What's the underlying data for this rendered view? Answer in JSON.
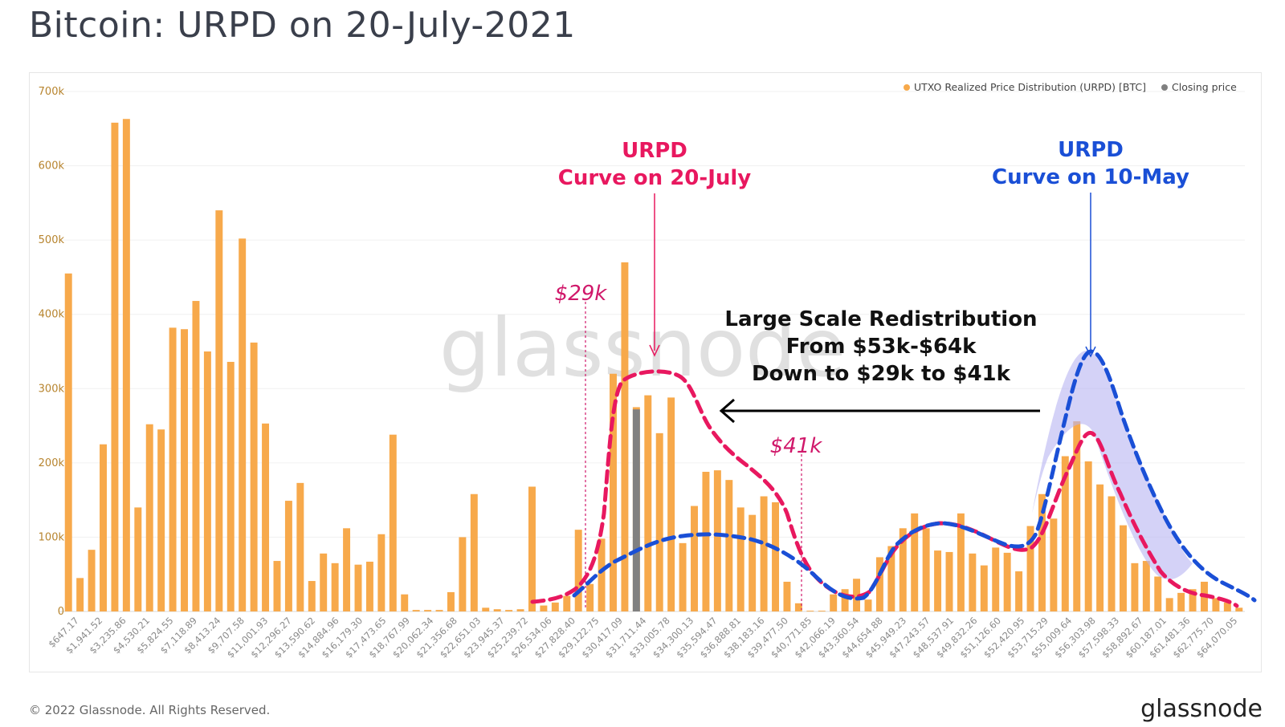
{
  "page": {
    "title": "Bitcoin: URPD on 20-July-2021",
    "copyright": "© 2022 Glassnode. All Rights Reserved.",
    "logo": "glassnode",
    "watermark": "glassnode"
  },
  "chart_data": {
    "type": "bar",
    "ylim": [
      0,
      700000
    ],
    "y_ticks": [
      0,
      100000,
      200000,
      300000,
      400000,
      500000,
      600000,
      700000
    ],
    "y_tick_labels": [
      "0",
      "100k",
      "200k",
      "300k",
      "400k",
      "500k",
      "600k",
      "700k"
    ],
    "grid": true,
    "legend": {
      "placement": "top-right",
      "items": [
        {
          "label": "UTXO Realized Price Distribution (URPD) [BTC]",
          "color": "#f7a94b"
        },
        {
          "label": "Closing price",
          "color": "#808080"
        }
      ]
    },
    "x_tick_labels": [
      "$647.17",
      "$1,941.52",
      "$3,235.86",
      "$4,530.21",
      "$5,824.55",
      "$7,118.89",
      "$8,413.24",
      "$9,707.58",
      "$11,001.93",
      "$12,296.27",
      "$13,590.62",
      "$14,884.96",
      "$16,179.30",
      "$17,473.65",
      "$18,767.99",
      "$20,062.34",
      "$21,356.68",
      "$22,651.03",
      "$23,945.37",
      "$25,239.72",
      "$26,534.06",
      "$27,828.40",
      "$29,122.75",
      "$30,417.09",
      "$31,711.44",
      "$33,005.78",
      "$34,300.13",
      "$35,594.47",
      "$36,888.81",
      "$38,183.16",
      "$39,477.50",
      "$40,771.85",
      "$42,066.19",
      "$43,360.54",
      "$44,654.88",
      "$45,949.23",
      "$47,243.57",
      "$48,537.91",
      "$49,832.26",
      "$51,126.60",
      "$52,420.95",
      "$53,715.29",
      "$55,009.64",
      "$56,303.98",
      "$57,598.33",
      "$58,892.67",
      "$60,187.01",
      "$61,481.36",
      "$62,775.70",
      "$64,070.05"
    ],
    "series": [
      {
        "name": "UTXO Realized Price Distribution (URPD) [BTC]",
        "color": "#f7a94b",
        "values": [
          455000,
          45000,
          83000,
          225000,
          658000,
          663000,
          140000,
          252000,
          245000,
          382000,
          380000,
          418000,
          350000,
          540000,
          336000,
          502000,
          362000,
          253000,
          68000,
          149000,
          173000,
          41000,
          78000,
          65000,
          112000,
          63000,
          67000,
          104000,
          238000,
          23000,
          2000,
          2000,
          2000,
          26000,
          100000,
          158000,
          5000,
          3000,
          2000,
          3000,
          168000,
          8000,
          12000,
          21000,
          110000,
          37000,
          98000,
          320000,
          470000,
          275000,
          291000,
          240000,
          288000,
          92000,
          142000,
          188000,
          190000,
          177000,
          140000,
          130000,
          155000,
          147000,
          40000,
          11000,
          1000,
          1000,
          23000,
          30000,
          44000,
          16000,
          73000,
          88000,
          112000,
          132000,
          112000,
          82000,
          80000,
          132000,
          78000,
          62000,
          86000,
          79000,
          54000,
          115000,
          158000,
          125000,
          209000,
          256000,
          202000,
          171000,
          155000,
          116000,
          65000,
          68000,
          47000,
          18000,
          25000,
          30000,
          40000,
          18000,
          12000,
          5000
        ]
      },
      {
        "name": "Closing price",
        "color": "#808080",
        "index": 49,
        "value": 272000
      }
    ]
  },
  "annotations": {
    "urpd_july": {
      "line1": "URPD",
      "line2": "Curve on 20-July",
      "color": "#e8185f"
    },
    "urpd_may": {
      "line1": "URPD",
      "line2": "Curve on 10-May",
      "color": "#1a4fd6"
    },
    "redistribution": {
      "line1": "Large Scale Redistribution",
      "line2": "From $53k-$64k",
      "line3": "Down to $29k to $41k"
    },
    "label_29k": "$29k",
    "label_41k": "$41k"
  }
}
